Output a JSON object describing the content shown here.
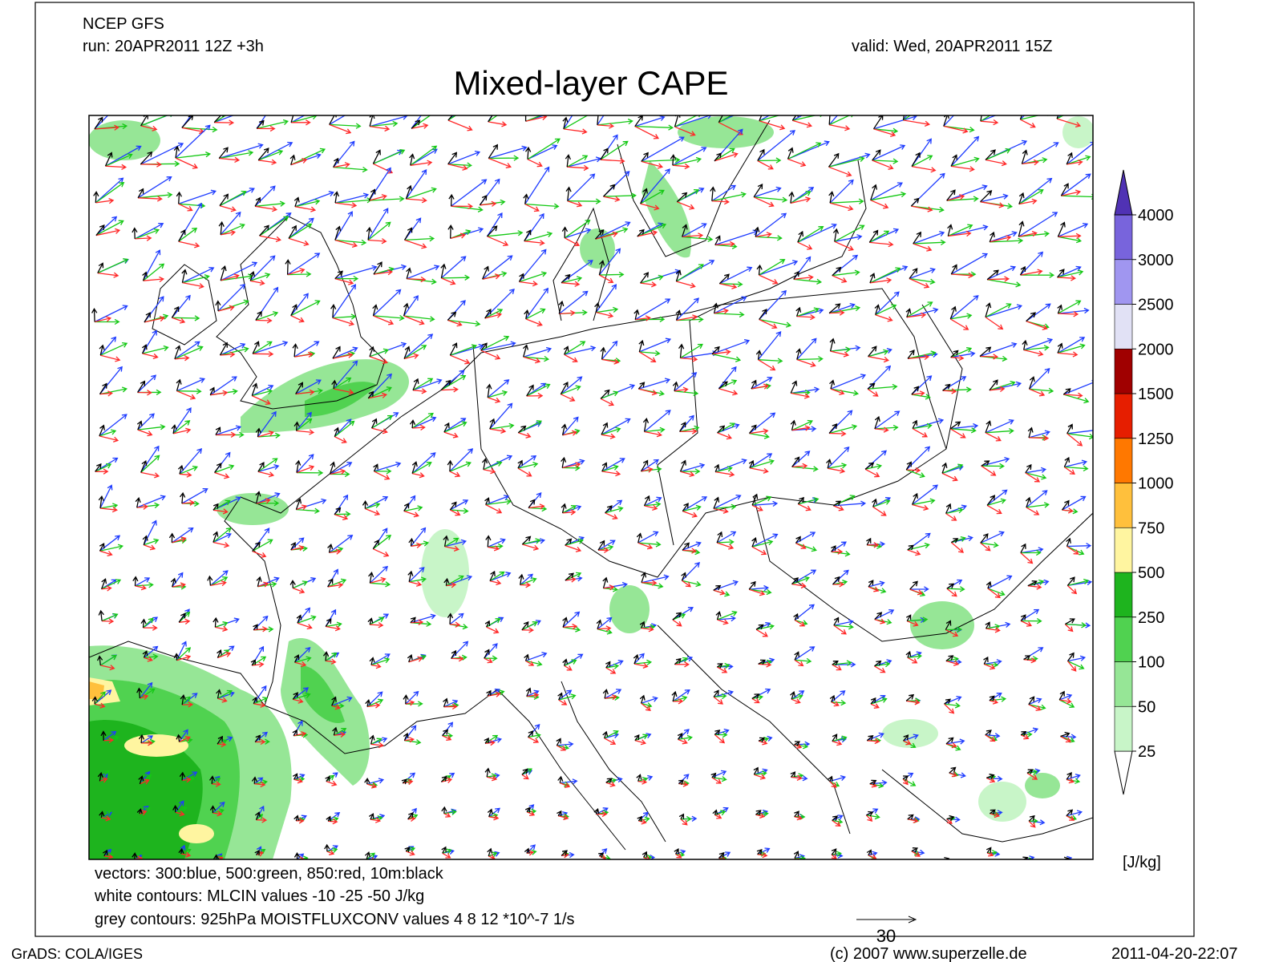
{
  "header": {
    "model": "NCEP GFS",
    "run": "run: 20APR2011 12Z +3h",
    "valid": "valid: Wed, 20APR2011 15Z",
    "title": "Mixed-layer CAPE"
  },
  "colorbar": {
    "levels": [
      25,
      50,
      100,
      250,
      500,
      750,
      1000,
      1250,
      1500,
      2000,
      2500,
      3000,
      4000
    ],
    "colors": [
      "#ffffff",
      "#c8f5c8",
      "#96e696",
      "#50d250",
      "#1eb41e",
      "#fff5a0",
      "#ffc03c",
      "#ff7800",
      "#e61e00",
      "#a00000",
      "#e1e1f5",
      "#a096f0",
      "#7864dc",
      "#5032b4"
    ],
    "unit": "[J/kg]"
  },
  "notes": [
    "vectors: 300:blue, 500:green, 850:red, 10m:black",
    "white contours: MLCIN values -10 -25 -50 J/kg",
    "grey contours: 925hPa MOISTFLUXCONV values 4 8 12 *10^-7 1/s"
  ],
  "scale_label": 30,
  "footer": {
    "software": "GrADS: COLA/IGES",
    "copyright": "(c) 2007 www.superzelle.de",
    "timestamp": "2011-04-20-22:07"
  }
}
